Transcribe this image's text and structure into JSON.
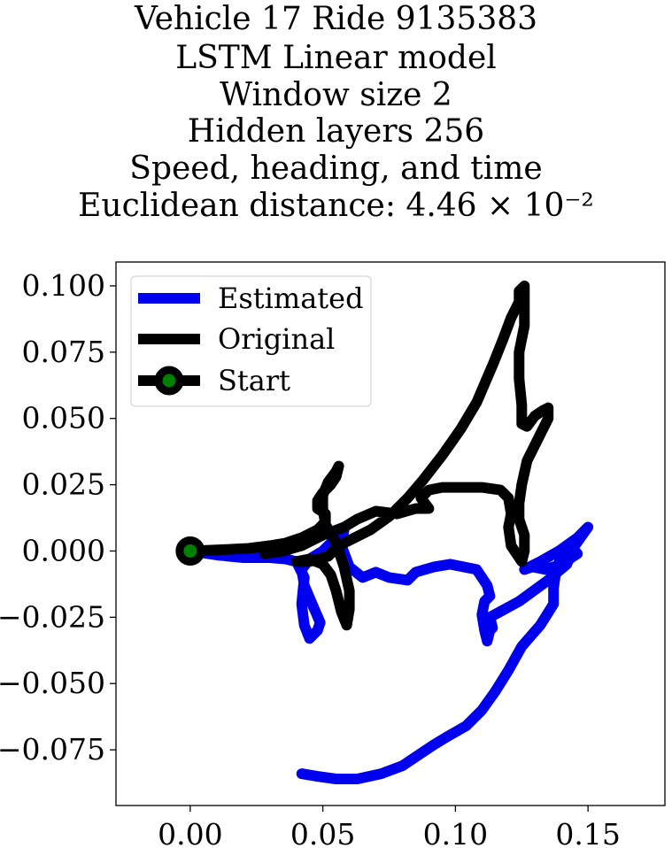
{
  "chart_data": {
    "type": "line",
    "title_lines": [
      "Vehicle 17 Ride 9135383",
      "LSTM Linear model",
      "Window size 2",
      "Hidden layers 256",
      "Speed, heading, and time",
      "Euclidean distance: 4.46 × 10⁻²"
    ],
    "xlim": [
      -0.028,
      0.179
    ],
    "ylim": [
      -0.096,
      0.109
    ],
    "xticks": [
      {
        "value": 0.0,
        "label": "0.00"
      },
      {
        "value": 0.05,
        "label": "0.05"
      },
      {
        "value": 0.1,
        "label": "0.10"
      },
      {
        "value": 0.15,
        "label": "0.15"
      }
    ],
    "yticks": [
      {
        "value": 0.1,
        "label": "0.100"
      },
      {
        "value": 0.075,
        "label": "0.075"
      },
      {
        "value": 0.05,
        "label": "0.050"
      },
      {
        "value": 0.025,
        "label": "0.025"
      },
      {
        "value": 0.0,
        "label": "0.000"
      },
      {
        "value": -0.025,
        "label": "−0.025"
      },
      {
        "value": -0.05,
        "label": "−0.050"
      },
      {
        "value": -0.075,
        "label": "−0.075"
      }
    ],
    "legend_position": "upper-left",
    "series": [
      {
        "name": "Estimated",
        "color": "#0000ee",
        "points": [
          [
            0.0,
            0.0
          ],
          [
            0.01,
            -0.0015
          ],
          [
            0.02,
            -0.0025
          ],
          [
            0.03,
            -0.0025
          ],
          [
            0.036,
            -0.003
          ],
          [
            0.04,
            -0.004
          ],
          [
            0.043,
            -0.01
          ],
          [
            0.042,
            -0.02
          ],
          [
            0.043,
            -0.028
          ],
          [
            0.045,
            -0.033
          ],
          [
            0.048,
            -0.03
          ],
          [
            0.049,
            -0.027
          ],
          [
            0.046,
            -0.02
          ],
          [
            0.043,
            -0.013
          ],
          [
            0.042,
            -0.007
          ],
          [
            0.045,
            -0.003
          ],
          [
            0.05,
            0.0
          ],
          [
            0.055,
            0.005
          ],
          [
            0.058,
            0.008
          ],
          [
            0.057,
            0.002
          ],
          [
            0.06,
            -0.006
          ],
          [
            0.065,
            -0.01
          ],
          [
            0.07,
            -0.008
          ],
          [
            0.075,
            -0.01
          ],
          [
            0.082,
            -0.011
          ],
          [
            0.085,
            -0.008
          ],
          [
            0.092,
            -0.006
          ],
          [
            0.098,
            -0.005
          ],
          [
            0.103,
            -0.006
          ],
          [
            0.108,
            -0.007
          ],
          [
            0.11,
            -0.01
          ],
          [
            0.112,
            -0.013
          ],
          [
            0.113,
            -0.017
          ],
          [
            0.111,
            -0.019
          ],
          [
            0.11,
            -0.024
          ],
          [
            0.111,
            -0.03
          ],
          [
            0.112,
            -0.034
          ],
          [
            0.113,
            -0.03
          ],
          [
            0.114,
            -0.029
          ],
          [
            0.113,
            -0.025
          ],
          [
            0.124,
            -0.019
          ],
          [
            0.135,
            -0.011
          ],
          [
            0.142,
            -0.005
          ],
          [
            0.145,
            0.002
          ],
          [
            0.15,
            0.009
          ],
          [
            0.146,
            0.005
          ],
          [
            0.139,
            0.0
          ],
          [
            0.132,
            -0.004
          ],
          [
            0.126,
            -0.007
          ],
          [
            0.129,
            -0.006
          ],
          [
            0.134,
            -0.007
          ],
          [
            0.14,
            -0.005
          ],
          [
            0.146,
            -0.001
          ],
          [
            0.144,
            0.001
          ],
          [
            0.14,
            -0.002
          ],
          [
            0.138,
            -0.007
          ],
          [
            0.137,
            -0.014
          ],
          [
            0.137,
            -0.02
          ],
          [
            0.132,
            -0.028
          ],
          [
            0.125,
            -0.036
          ],
          [
            0.12,
            -0.045
          ],
          [
            0.115,
            -0.053
          ],
          [
            0.11,
            -0.06
          ],
          [
            0.104,
            -0.066
          ],
          [
            0.097,
            -0.07
          ],
          [
            0.092,
            -0.073
          ],
          [
            0.086,
            -0.077
          ],
          [
            0.08,
            -0.081
          ],
          [
            0.072,
            -0.084
          ],
          [
            0.063,
            -0.086
          ],
          [
            0.055,
            -0.086
          ],
          [
            0.048,
            -0.085
          ],
          [
            0.042,
            -0.084
          ]
        ]
      },
      {
        "name": "Original",
        "color": "#000000",
        "points": [
          [
            0.0,
            0.0
          ],
          [
            0.012,
            0.0005
          ],
          [
            0.022,
            0.001
          ],
          [
            0.03,
            0.002
          ],
          [
            0.036,
            0.003
          ],
          [
            0.042,
            0.005
          ],
          [
            0.048,
            0.008
          ],
          [
            0.051,
            0.011
          ],
          [
            0.051,
            0.014
          ],
          [
            0.048,
            0.016
          ],
          [
            0.048,
            0.019
          ],
          [
            0.05,
            0.022
          ],
          [
            0.053,
            0.025
          ],
          [
            0.055,
            0.028
          ],
          [
            0.056,
            0.032
          ],
          [
            0.055,
            0.03
          ],
          [
            0.052,
            0.026
          ],
          [
            0.05,
            0.021
          ],
          [
            0.05,
            0.016
          ],
          [
            0.051,
            0.01
          ],
          [
            0.055,
            0.003
          ],
          [
            0.058,
            -0.006
          ],
          [
            0.06,
            -0.015
          ],
          [
            0.06,
            -0.022
          ],
          [
            0.059,
            -0.028
          ],
          [
            0.057,
            -0.023
          ],
          [
            0.055,
            -0.015
          ],
          [
            0.053,
            -0.009
          ],
          [
            0.05,
            -0.005
          ],
          [
            0.045,
            -0.003
          ],
          [
            0.04,
            -0.004
          ],
          [
            0.045,
            -0.004
          ],
          [
            0.052,
            -0.002
          ],
          [
            0.056,
            0.002
          ],
          [
            0.06,
            0.004
          ],
          [
            0.068,
            0.008
          ],
          [
            0.075,
            0.013
          ],
          [
            0.082,
            0.02
          ],
          [
            0.088,
            0.027
          ],
          [
            0.095,
            0.036
          ],
          [
            0.102,
            0.046
          ],
          [
            0.108,
            0.056
          ],
          [
            0.111,
            0.063
          ],
          [
            0.114,
            0.07
          ],
          [
            0.118,
            0.08
          ],
          [
            0.121,
            0.088
          ],
          [
            0.124,
            0.094
          ],
          [
            0.124,
            0.098
          ],
          [
            0.126,
            0.1
          ],
          [
            0.126,
            0.095
          ],
          [
            0.126,
            0.085
          ],
          [
            0.124,
            0.075
          ],
          [
            0.124,
            0.065
          ],
          [
            0.125,
            0.055
          ],
          [
            0.125,
            0.048
          ],
          [
            0.127,
            0.047
          ],
          [
            0.13,
            0.051
          ],
          [
            0.133,
            0.053
          ],
          [
            0.135,
            0.054
          ],
          [
            0.135,
            0.05
          ],
          [
            0.132,
            0.044
          ],
          [
            0.127,
            0.034
          ],
          [
            0.125,
            0.025
          ],
          [
            0.124,
            0.018
          ],
          [
            0.124,
            0.012
          ],
          [
            0.126,
            0.006
          ],
          [
            0.126,
            0.0
          ],
          [
            0.125,
            -0.004
          ],
          [
            0.123,
            -0.001
          ],
          [
            0.121,
            0.002
          ],
          [
            0.12,
            0.009
          ],
          [
            0.121,
            0.014
          ],
          [
            0.12,
            0.02
          ],
          [
            0.117,
            0.023
          ],
          [
            0.11,
            0.024
          ],
          [
            0.102,
            0.024
          ],
          [
            0.095,
            0.024
          ],
          [
            0.09,
            0.023
          ],
          [
            0.087,
            0.02
          ],
          [
            0.09,
            0.016
          ],
          [
            0.085,
            0.016
          ],
          [
            0.078,
            0.014
          ],
          [
            0.07,
            0.015
          ],
          [
            0.063,
            0.012
          ],
          [
            0.058,
            0.009
          ],
          [
            0.05,
            0.006
          ],
          [
            0.042,
            0.002
          ],
          [
            0.035,
            0.0
          ],
          [
            0.028,
            -0.001
          ]
        ]
      },
      {
        "name": "Start",
        "color": "#000000",
        "marker_face": "#008000",
        "points": [
          [
            0.0,
            0.0
          ]
        ]
      }
    ]
  }
}
